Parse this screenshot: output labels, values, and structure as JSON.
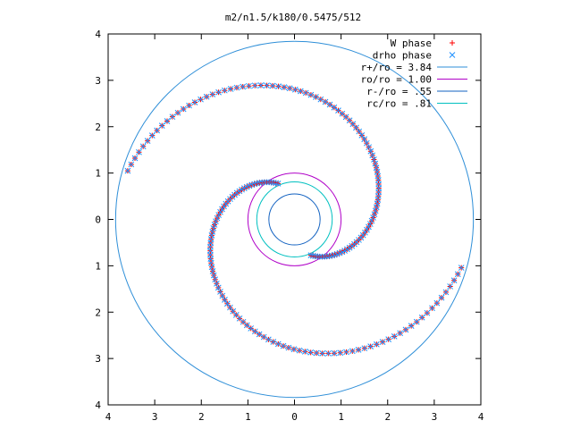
{
  "chart_data": {
    "type": "scatter",
    "title": "m2/n1.5/k180/0.5475/512",
    "xlabel": "",
    "ylabel": "",
    "xlim": [
      -4,
      4
    ],
    "ylim": [
      -4,
      4
    ],
    "x_tick_labels": [
      "4",
      "3",
      "2",
      "1",
      "0",
      "1",
      "2",
      "3",
      "4"
    ],
    "y_tick_labels": [
      "4",
      "3",
      "2",
      "1",
      "0",
      "1",
      "2",
      "3",
      "4"
    ],
    "grid": false,
    "legend_position": "top-right",
    "colors": {
      "w_phase": "#ff0000",
      "drho_phase": "#1e90ff",
      "r_plus": "#2f8fd8",
      "ro": "#b000c8",
      "r_minus": "#1060c0",
      "rc": "#00c0c0"
    },
    "series": [
      {
        "key": "w_phase",
        "name": "W phase",
        "kind": "points",
        "marker": "plus"
      },
      {
        "key": "drho_phase",
        "name": "drho phase",
        "kind": "points",
        "marker": "cross"
      },
      {
        "key": "r_plus",
        "name": "r+/ro = 3.84",
        "kind": "circle",
        "radius": 3.84
      },
      {
        "key": "ro",
        "name": "ro/ro = 1.00",
        "kind": "circle",
        "radius": 1.0
      },
      {
        "key": "r_minus",
        "name": "r-/ro = .55",
        "kind": "circle",
        "radius": 0.55
      },
      {
        "key": "rc",
        "name": "rc/ro = .81",
        "kind": "circle",
        "radius": 0.81
      }
    ],
    "arms": [
      {
        "r0": 0.85,
        "r1": 3.75,
        "th0": 2.0,
        "dth": 0.72,
        "step": 0.03
      },
      {
        "r0": 0.85,
        "r1": 3.75,
        "th0": 5.14,
        "dth": 0.72,
        "step": 0.03
      }
    ]
  }
}
